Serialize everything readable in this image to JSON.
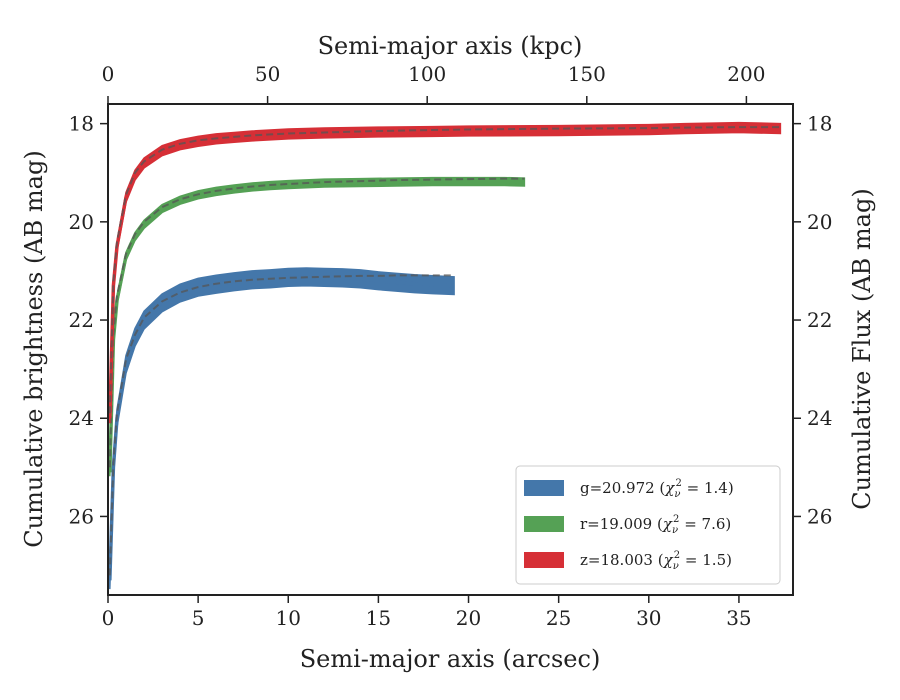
{
  "chart_data": {
    "type": "line",
    "title": "",
    "xlabel": "Semi-major axis (arcsec)",
    "x2label": "Semi-major axis (kpc)",
    "ylabel": "Cumulative brightness (AB mag)",
    "y2label": "Cumulative Flux (AB mag)",
    "xlim": [
      0,
      38
    ],
    "x2lim": [
      0,
      214.6
    ],
    "ylim": [
      27.6,
      17.6
    ],
    "y_inverted": true,
    "xticks": [
      0,
      5,
      10,
      15,
      20,
      25,
      30,
      35
    ],
    "x2ticks": [
      0,
      50,
      100,
      150,
      200
    ],
    "yticks": [
      18,
      20,
      22,
      24,
      26
    ],
    "xtick_labels": [
      "0",
      "5",
      "10",
      "15",
      "20",
      "25",
      "30",
      "35"
    ],
    "x2tick_labels": [
      "0",
      "50",
      "100",
      "150",
      "200"
    ],
    "ytick_labels": [
      "18",
      "20",
      "22",
      "24",
      "26"
    ],
    "y2tick_labels": [
      "18",
      "20",
      "22",
      "24",
      "26"
    ],
    "grid": false,
    "legend_position": "lower-right",
    "model_line_style": "dashed",
    "series": [
      {
        "name": "g=20.972",
        "chi2": "1.4",
        "color": "#4477aa",
        "band_width": 0.15,
        "x": [
          0.1,
          0.3,
          0.5,
          1,
          1.5,
          2,
          3,
          4,
          5,
          6,
          7,
          8,
          9,
          10,
          11,
          12,
          13,
          14,
          15,
          16,
          17,
          18,
          19.2
        ],
        "y": [
          27.3,
          25.0,
          24.0,
          22.9,
          22.35,
          22.0,
          21.65,
          21.45,
          21.33,
          21.27,
          21.22,
          21.18,
          21.16,
          21.13,
          21.12,
          21.13,
          21.14,
          21.16,
          21.2,
          21.23,
          21.26,
          21.28,
          21.3
        ],
        "model": [
          27.2,
          24.9,
          23.9,
          22.8,
          22.3,
          21.95,
          21.62,
          21.44,
          21.33,
          21.26,
          21.21,
          21.18,
          21.16,
          21.14,
          21.13,
          21.12,
          21.11,
          21.1,
          21.1,
          21.09,
          21.09,
          21.09,
          21.09
        ]
      },
      {
        "name": "r=19.009",
        "chi2": "7.6",
        "color": "#55a155",
        "band_width": 0.05,
        "x": [
          0.1,
          0.3,
          0.5,
          1,
          1.5,
          2,
          3,
          4,
          5,
          6,
          7,
          8,
          9,
          10,
          12,
          14,
          16,
          18,
          20,
          22,
          23.1
        ],
        "y": [
          25.1,
          22.4,
          21.6,
          20.7,
          20.3,
          20.05,
          19.73,
          19.56,
          19.45,
          19.38,
          19.33,
          19.29,
          19.26,
          19.24,
          19.21,
          19.2,
          19.19,
          19.18,
          19.18,
          19.18,
          19.19
        ],
        "model": [
          25.0,
          22.3,
          21.5,
          20.65,
          20.25,
          20.0,
          19.7,
          19.54,
          19.44,
          19.37,
          19.32,
          19.28,
          19.25,
          19.23,
          19.19,
          19.17,
          19.15,
          19.14,
          19.13,
          19.12,
          19.12
        ]
      },
      {
        "name": "z=18.003",
        "chi2": "1.5",
        "color": "#d62f36",
        "band_width": 0.07,
        "x": [
          0.1,
          0.3,
          0.5,
          1,
          1.5,
          2,
          3,
          4,
          5,
          6,
          7,
          8,
          10,
          12,
          15,
          18,
          20,
          25,
          30,
          32,
          35,
          37.3
        ],
        "y": [
          24.0,
          21.3,
          20.5,
          19.5,
          19.05,
          18.8,
          18.55,
          18.43,
          18.36,
          18.31,
          18.28,
          18.25,
          18.21,
          18.19,
          18.17,
          18.16,
          18.15,
          18.14,
          18.12,
          18.1,
          18.08,
          18.1
        ],
        "model": [
          23.9,
          21.2,
          20.4,
          19.45,
          19.0,
          18.77,
          18.53,
          18.41,
          18.34,
          18.3,
          18.27,
          18.24,
          18.2,
          18.18,
          18.15,
          18.13,
          18.12,
          18.1,
          18.09,
          18.08,
          18.07,
          18.07
        ]
      }
    ]
  }
}
